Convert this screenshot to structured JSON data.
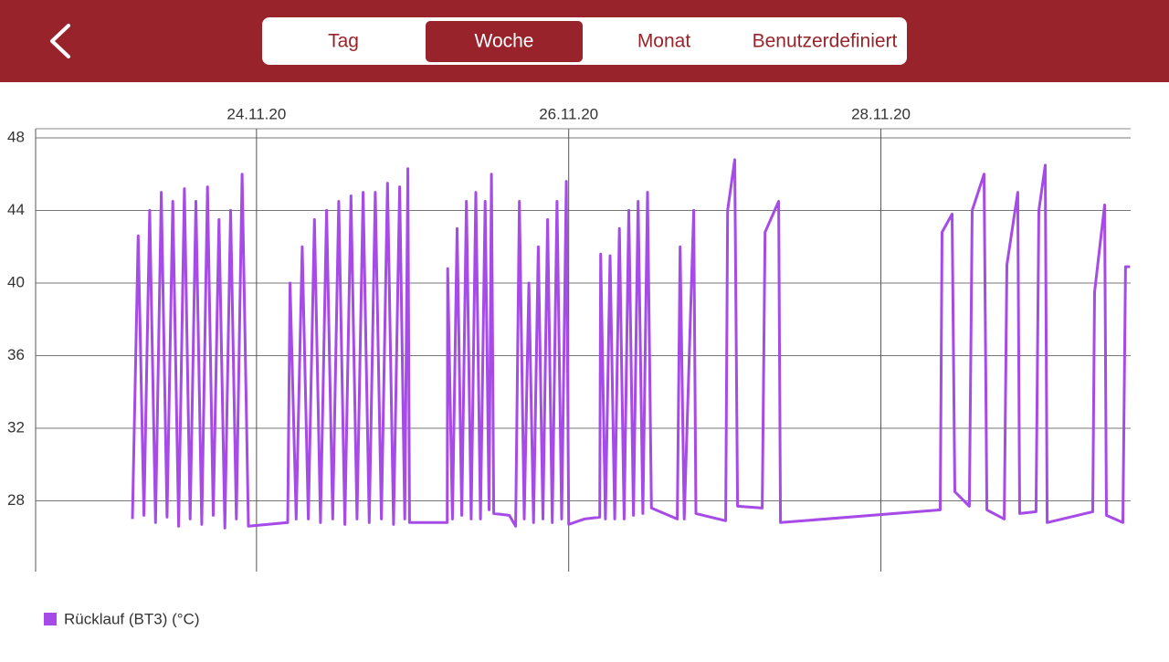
{
  "header": {
    "tabs": [
      "Tag",
      "Woche",
      "Monat",
      "Benutzerdefiniert"
    ],
    "selected": 1
  },
  "chart_data": {
    "type": "line",
    "x": [
      23.205,
      23.242,
      23.279,
      23.316,
      23.353,
      23.39,
      23.427,
      23.464,
      23.501,
      23.538,
      23.575,
      23.612,
      23.649,
      23.686,
      23.723,
      23.76,
      23.797,
      23.834,
      23.871,
      23.908,
      23.948,
      24.2,
      24.215,
      24.254,
      24.293,
      24.332,
      24.371,
      24.41,
      24.449,
      24.488,
      24.527,
      24.566,
      24.605,
      24.644,
      24.683,
      24.722,
      24.761,
      24.8,
      24.839,
      24.878,
      24.917,
      24.95,
      24.97,
      24.98,
      25.222,
      25.225,
      25.255,
      25.285,
      25.315,
      25.345,
      25.375,
      25.405,
      25.435,
      25.465,
      25.49,
      25.505,
      25.52,
      25.62,
      25.66,
      25.684,
      25.715,
      25.745,
      25.775,
      25.805,
      25.835,
      25.865,
      25.895,
      25.925,
      25.955,
      25.985,
      26.0,
      26.1,
      26.199,
      26.205,
      26.235,
      26.265,
      26.295,
      26.325,
      26.355,
      26.385,
      26.415,
      26.445,
      26.475,
      26.505,
      26.53,
      26.696,
      26.714,
      26.74,
      26.801,
      26.815,
      27.006,
      27.018,
      27.064,
      27.082,
      27.24,
      27.258,
      27.345,
      27.357,
      28.38,
      28.392,
      28.456,
      28.474,
      28.567,
      28.585,
      28.661,
      28.679,
      28.79,
      28.807,
      28.877,
      28.889,
      28.994,
      29.012,
      29.053,
      29.065,
      29.357,
      29.369,
      29.433,
      29.445,
      29.55,
      29.567,
      29.596
    ],
    "series": [
      {
        "name": "Rücklauf (BT3) (°C)",
        "color": "#a64ae8",
        "values": [
          27,
          42.6,
          27.2,
          44,
          26.8,
          45,
          27.1,
          44.5,
          26.6,
          45.2,
          27,
          44.5,
          26.7,
          45.3,
          27.2,
          43.5,
          26.5,
          44,
          27,
          46,
          26.6,
          26.8,
          40,
          27,
          42,
          27,
          43.5,
          26.8,
          44,
          27,
          44.5,
          26.7,
          44.8,
          27,
          45,
          26.8,
          45,
          27,
          45.5,
          26.7,
          45.3,
          27,
          46.3,
          26.8,
          26.8,
          40.8,
          27,
          43,
          27.2,
          44.5,
          27,
          45,
          27,
          44.5,
          27.5,
          46,
          27.3,
          27.2,
          26.6,
          44.5,
          27,
          40,
          26.8,
          42,
          27,
          43.5,
          26.8,
          44.5,
          27,
          45.6,
          26.7,
          27,
          27.1,
          41.6,
          27,
          41.5,
          27,
          43,
          27,
          44,
          27.2,
          44.5,
          27.3,
          45,
          27.6,
          27,
          42,
          27,
          44,
          27.3,
          26.9,
          44,
          46.8,
          27.7,
          27.6,
          42.8,
          44.5,
          26.8,
          27.5,
          42.8,
          43.8,
          28.5,
          27.7,
          44,
          46,
          27.5,
          27,
          41,
          45,
          27.3,
          27.4,
          44,
          46.5,
          26.8,
          27.4,
          39.5,
          44.3,
          27.2,
          26.8,
          40.9,
          40.9
        ]
      }
    ],
    "xlim": [
      22.585,
      29.6
    ],
    "xticks": [
      {
        "value": 24,
        "label": "24.11.20"
      },
      {
        "value": 26,
        "label": "26.11.20"
      },
      {
        "value": 28,
        "label": "28.11.20"
      }
    ],
    "ylim": [
      24.1,
      48.5
    ],
    "yticks": [
      28,
      32,
      36,
      40,
      44,
      48
    ],
    "grid": true
  }
}
